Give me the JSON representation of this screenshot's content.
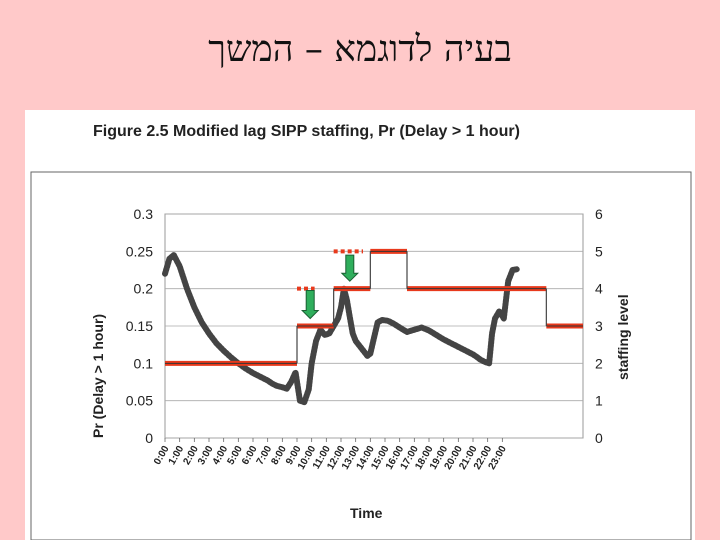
{
  "slide": {
    "title": "בעיה לדוגמא – המשך"
  },
  "chart_data": {
    "type": "line",
    "title": "Figure 2.5 Modified lag SIPP staffing, Pr (Delay > 1 hour)",
    "xlabel": "Time",
    "ylabel": "Pr (Delay > 1 hour)",
    "y2label": "staffing level",
    "ylim": [
      0,
      0.3
    ],
    "y2lim": [
      0,
      6
    ],
    "yticks": [
      "0.3",
      "0.25",
      "0.2",
      "0.15",
      "0.1",
      "0.05",
      "0"
    ],
    "y2ticks": [
      "6",
      "5",
      "4",
      "3",
      "2",
      "1",
      "0"
    ],
    "categories": [
      "0:00",
      "1:00",
      "2:00",
      "3:00",
      "4:00",
      "5:00",
      "6:00",
      "7:00",
      "8:00",
      "9:00",
      "10:00",
      "11:00",
      "12:00",
      "13:00",
      "14:00",
      "15:00",
      "16:00",
      "17:00",
      "18:00",
      "19:00",
      "20:00",
      "21:00",
      "22:00",
      "23:00"
    ],
    "grid": true,
    "series": [
      {
        "role": "probability",
        "color": "#444444",
        "x": [
          0,
          0.3,
          0.6,
          1.0,
          1.5,
          2.0,
          2.5,
          3.0,
          3.5,
          4.0,
          4.5,
          5.0,
          5.5,
          6.0,
          6.5,
          7.0,
          7.3,
          7.6,
          8.0,
          8.3,
          8.6,
          8.9,
          9.2,
          9.5,
          9.8,
          10.0,
          10.3,
          10.6,
          10.9,
          11.2,
          11.5,
          11.8,
          12.0,
          12.2,
          12.4,
          12.6,
          12.8,
          13.0,
          13.2,
          13.4,
          13.6,
          13.8,
          14.0,
          14.2,
          14.5,
          14.8,
          15.2,
          15.6,
          16.0,
          16.5,
          17.0,
          17.5,
          18.0,
          18.5,
          19.0,
          19.5,
          20.0,
          20.5,
          21.0,
          21.3,
          21.5,
          21.8,
          22.1,
          22.3,
          22.5,
          22.8,
          23.1,
          23.4,
          23.7,
          24.0
        ],
        "y": [
          0.22,
          0.24,
          0.245,
          0.23,
          0.2,
          0.175,
          0.155,
          0.14,
          0.127,
          0.117,
          0.108,
          0.1,
          0.093,
          0.087,
          0.082,
          0.077,
          0.073,
          0.07,
          0.068,
          0.066,
          0.075,
          0.088,
          0.05,
          0.048,
          0.065,
          0.1,
          0.13,
          0.145,
          0.138,
          0.14,
          0.15,
          0.16,
          0.175,
          0.2,
          0.185,
          0.162,
          0.14,
          0.13,
          0.125,
          0.12,
          0.115,
          0.11,
          0.113,
          0.13,
          0.155,
          0.158,
          0.157,
          0.153,
          0.148,
          0.142,
          0.145,
          0.148,
          0.144,
          0.138,
          0.132,
          0.127,
          0.122,
          0.117,
          0.112,
          0.108,
          0.105,
          0.102,
          0.1,
          0.14,
          0.16,
          0.17,
          0.16,
          0.21,
          0.225,
          0.226
        ]
      },
      {
        "role": "staffing",
        "color": "#e8391c",
        "segments": [
          {
            "x0": 0,
            "x1": 9,
            "level": 2
          },
          {
            "x0": 9,
            "x1": 11.5,
            "level": 3
          },
          {
            "x0": 11.5,
            "x1": 14,
            "level": 4
          },
          {
            "x0": 14,
            "x1": 16.5,
            "level": 5
          },
          {
            "x0": 16.5,
            "x1": 26,
            "level": 4
          },
          {
            "x0": 26,
            "x1": 28.5,
            "level": 3
          }
        ]
      }
    ],
    "annotations": [
      {
        "kind": "dotted-bar",
        "x0": 9,
        "x1": 10.2,
        "level": 4
      },
      {
        "kind": "dotted-bar",
        "x0": 11.5,
        "x1": 13.5,
        "level": 5
      },
      {
        "kind": "arrow-down",
        "x": 9.9,
        "from_level": 3.95,
        "to_level": 3.2
      },
      {
        "kind": "arrow-down",
        "x": 12.6,
        "from_level": 4.9,
        "to_level": 4.2
      }
    ]
  }
}
